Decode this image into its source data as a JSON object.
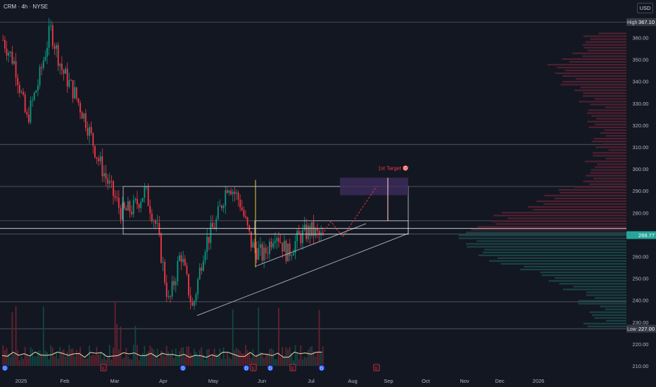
{
  "symbol_title": "CRM · 4h · NYSE",
  "currency": "USD",
  "colors": {
    "background": "#131722",
    "bull": "#089981",
    "bear": "#f23645",
    "price_label": "#26a69a",
    "hl_label": "#363a45",
    "target": "#f23645"
  },
  "high_label": {
    "tag": "High",
    "value": "367.10"
  },
  "low_label": {
    "tag": "Low",
    "value": "227.00"
  },
  "price_label": "269.77",
  "target_label": "1st Target 🎯",
  "chart_data": {
    "type": "candlestick",
    "title": "CRM · 4h · NYSE",
    "y_ticks": [
      210,
      220,
      230,
      240,
      250,
      260,
      270,
      280,
      290,
      300,
      310,
      320,
      330,
      340,
      350,
      360
    ],
    "ylim": [
      208,
      370
    ],
    "x_ticks": [
      "2025",
      "Feb",
      "Mar",
      "Apr",
      "May",
      "Jun",
      "Jul",
      "Aug",
      "Sep",
      "Oct",
      "Nov",
      "Dec",
      "2026"
    ],
    "session_high": 367.1,
    "session_low": 227.0,
    "last_price": 269.77,
    "horizontal_levels": [
      367.1,
      311.2,
      292.0,
      276.3,
      272.8,
      270.2,
      239.3,
      227.0
    ],
    "anchor_closes": [
      [
        "2025",
        359
      ],
      [
        "2025+",
        348
      ],
      [
        "mid-Jan",
        322
      ],
      [
        "Jan-20",
        340
      ],
      [
        "Jan-27",
        364
      ],
      [
        "Feb-03",
        345
      ],
      [
        "Feb-10",
        335
      ],
      [
        "Feb-17",
        322
      ],
      [
        "Feb-24",
        305
      ],
      [
        "Mar-03",
        292
      ],
      [
        "Mar-10",
        280
      ],
      [
        "Mar-17",
        282
      ],
      [
        "Mar-24",
        290
      ],
      [
        "Mar-31",
        273
      ],
      [
        "Apr-07",
        238
      ],
      [
        "Apr-14",
        262
      ],
      [
        "Apr-21",
        236
      ],
      [
        "Apr-28",
        265
      ],
      [
        "May-05",
        276
      ],
      [
        "May-12",
        294
      ],
      [
        "May-19",
        285
      ],
      [
        "May-26",
        265
      ],
      [
        "Jun-02",
        260
      ],
      [
        "Jun-09",
        272
      ],
      [
        "Jun-16",
        261
      ],
      [
        "Jun-23",
        269
      ],
      [
        "Jun-30",
        272
      ],
      [
        "Jul-07",
        268
      ]
    ],
    "events": [
      "D",
      "E",
      "D",
      "D",
      "E",
      "D",
      "E",
      "D",
      "E"
    ]
  }
}
